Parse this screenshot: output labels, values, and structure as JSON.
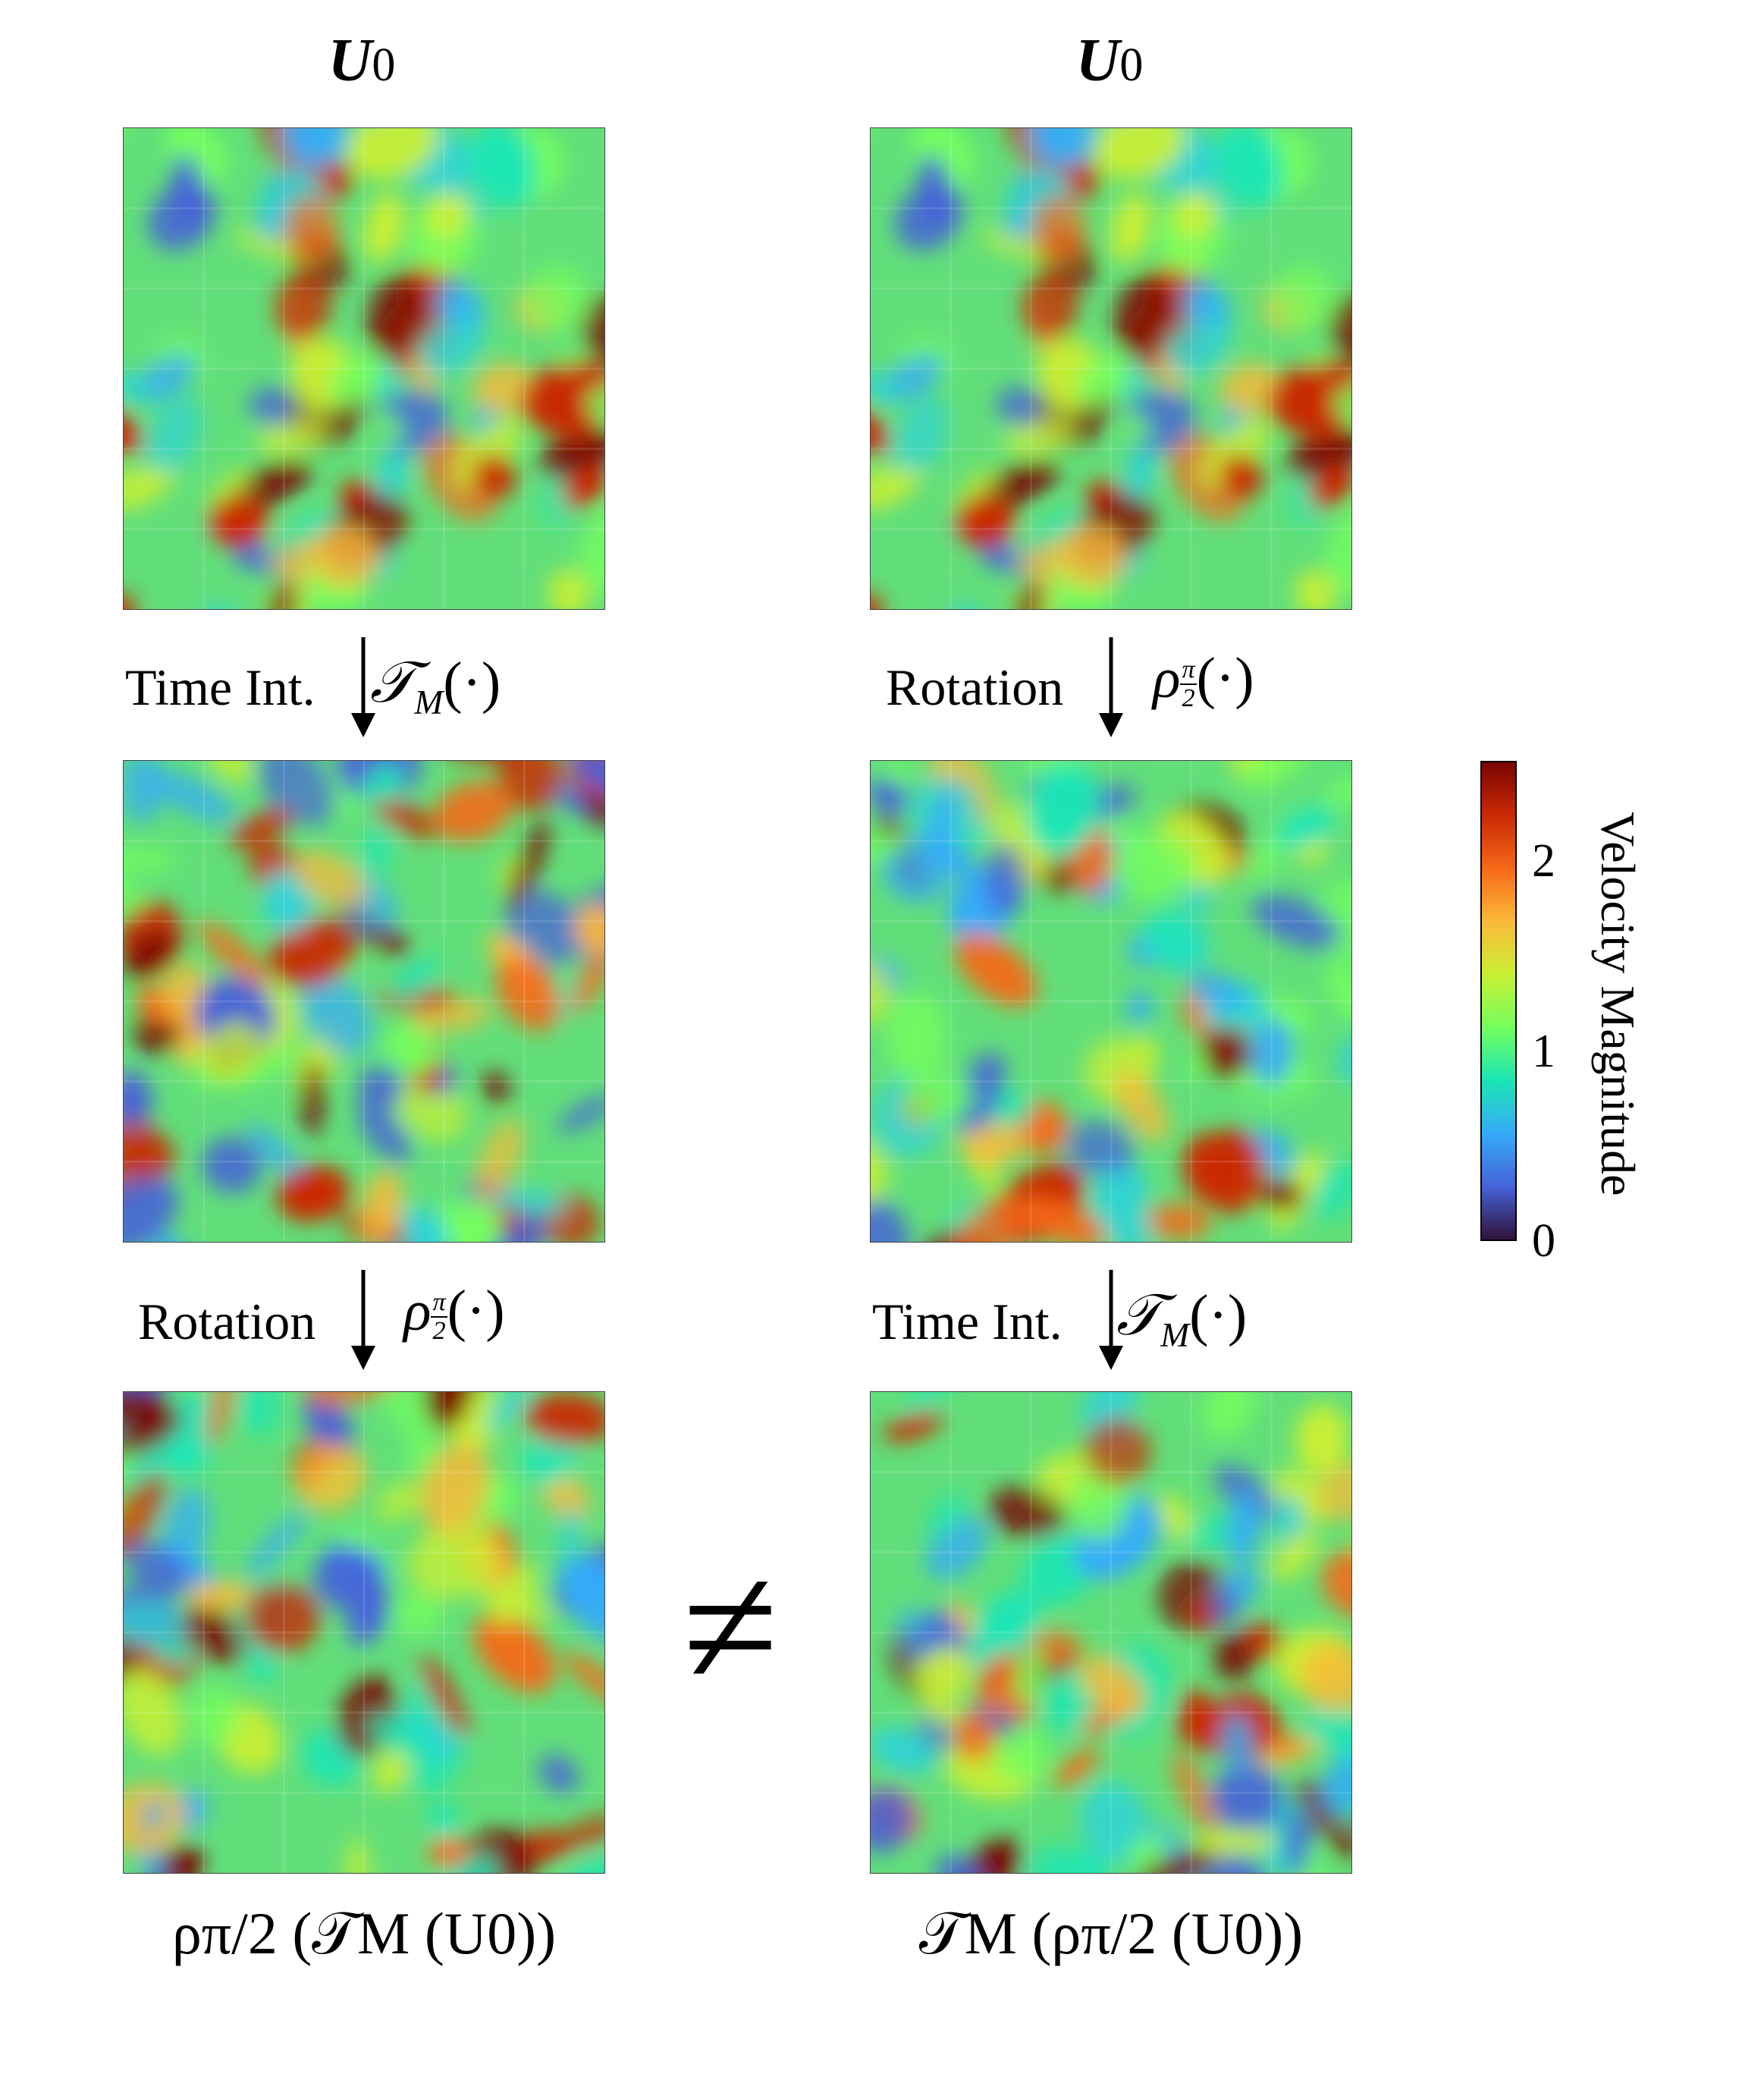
{
  "titles": {
    "left": "U",
    "right": "U",
    "subscript": "0"
  },
  "steps": {
    "left_top": {
      "label": "Time Int.",
      "op": "𝒯",
      "op_sub": "M",
      "op_args": "(·)"
    },
    "right_top": {
      "label": "Rotation",
      "op": "ρ",
      "op_frac_num": "π",
      "op_frac_den": "2",
      "op_args": "(·)"
    },
    "left_bottom": {
      "label": "Rotation",
      "op": "ρ",
      "op_frac_num": "π",
      "op_frac_den": "2",
      "op_args": "(·)"
    },
    "right_bottom": {
      "label": "Time Int.",
      "op": "𝒯",
      "op_sub": "M",
      "op_args": "(·)"
    }
  },
  "captions": {
    "left": "ρπ/2 (𝒯M (U0))",
    "right": "𝒯M (ρπ/2 (U0))"
  },
  "relation": "≠",
  "colorbar": {
    "label": "Velocity Magnitude",
    "ticks": [
      "0",
      "1",
      "2"
    ],
    "range": [
      0,
      2.45
    ],
    "colormap": [
      "#30123b",
      "#4662d8",
      "#35abf8",
      "#1be5b5",
      "#74fe5d",
      "#c9ef34",
      "#fbb938",
      "#f56918",
      "#c92903",
      "#7a0403"
    ]
  },
  "panels": [
    {
      "name": "u0-left",
      "seed": 11
    },
    {
      "name": "u0-right",
      "seed": 11
    },
    {
      "name": "time-integrated",
      "seed": 23
    },
    {
      "name": "rotated",
      "seed": 37
    },
    {
      "name": "rotated-time-integrated",
      "seed": 41
    },
    {
      "name": "time-integrated-rotated",
      "seed": 53
    }
  ]
}
